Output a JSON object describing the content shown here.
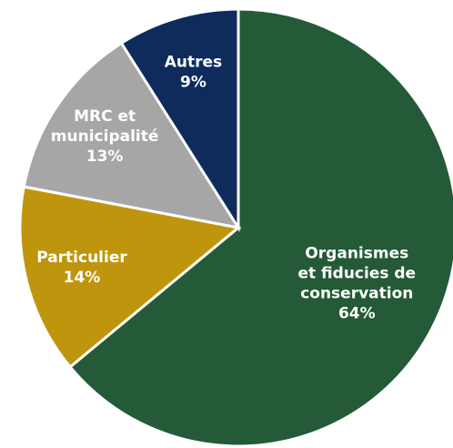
{
  "chart_data": {
    "type": "pie",
    "categories": [
      "Organismes\net fiducies de\nconservation",
      "Particulier",
      "MRC et\nmunicipalité",
      "Autres"
    ],
    "values": [
      64,
      14,
      13,
      9
    ],
    "value_labels": [
      "64%",
      "14%",
      "13%",
      "9%"
    ],
    "colors": [
      "#245a37",
      "#bf950d",
      "#a6a6a6",
      "#0e2b5c"
    ]
  }
}
